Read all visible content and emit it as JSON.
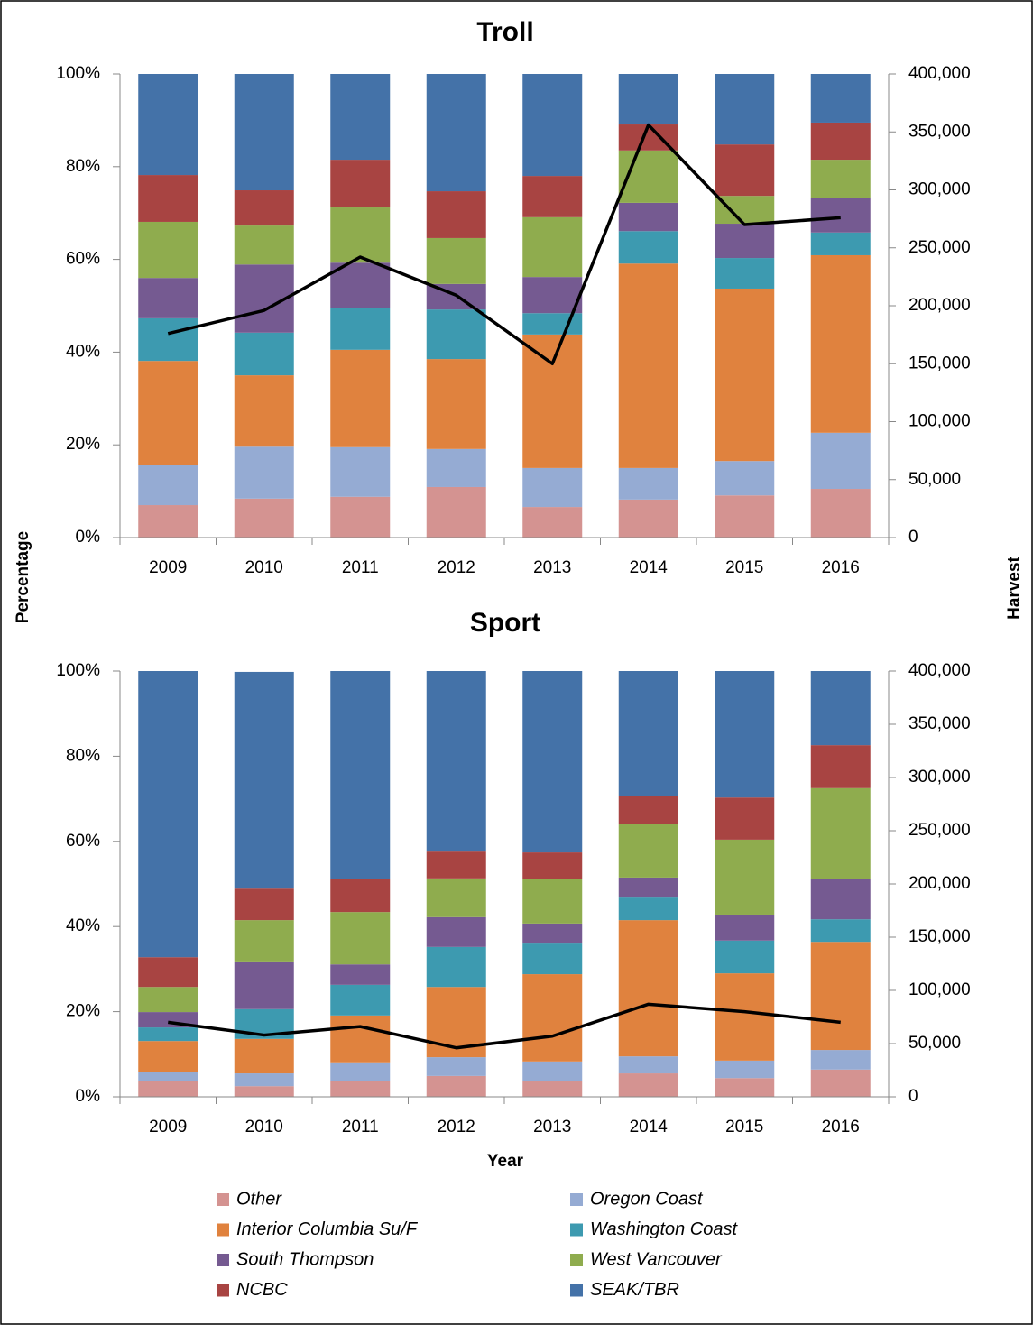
{
  "chart_data": [
    {
      "type": "bar",
      "stacked": true,
      "title": "Troll",
      "ylabel": "Percentage",
      "y2label": "Harvest",
      "categories": [
        "2009",
        "2010",
        "2011",
        "2012",
        "2013",
        "2014",
        "2015",
        "2016"
      ],
      "series": [
        {
          "name": "Other",
          "color": "#d49391",
          "values": [
            7.0,
            8.4,
            8.8,
            10.9,
            6.6,
            8.2,
            9.1,
            10.5
          ]
        },
        {
          "name": "Oregon Coast",
          "color": "#95abd3",
          "values": [
            8.6,
            11.2,
            10.7,
            8.2,
            8.4,
            6.8,
            7.4,
            12.1
          ]
        },
        {
          "name": "Interior Columbia Su/F",
          "color": "#e0823e",
          "values": [
            22.5,
            15.4,
            21.0,
            19.4,
            28.8,
            44.1,
            37.2,
            38.3
          ]
        },
        {
          "name": "Washington Coast",
          "color": "#3d9ab0",
          "values": [
            9.2,
            9.2,
            9.1,
            10.7,
            4.6,
            7.0,
            6.6,
            4.9
          ]
        },
        {
          "name": "South Thompson",
          "color": "#755a91",
          "values": [
            8.7,
            14.7,
            9.7,
            5.5,
            7.8,
            6.1,
            7.4,
            7.4
          ]
        },
        {
          "name": "West Vancouver",
          "color": "#8fac4e",
          "values": [
            12.1,
            8.4,
            11.9,
            9.9,
            12.9,
            11.3,
            6.0,
            8.3
          ]
        },
        {
          "name": "NCBC",
          "color": "#a84442",
          "values": [
            10.1,
            7.6,
            10.3,
            10.1,
            8.9,
            5.6,
            11.1,
            8.0
          ]
        },
        {
          "name": "SEAK/TBR",
          "color": "#4472a8",
          "values": [
            21.8,
            25.1,
            18.5,
            25.3,
            22.0,
            10.9,
            15.2,
            10.5
          ]
        },
        {
          "type": "line",
          "axis": "y2",
          "color": "#000000",
          "values": [
            176000,
            196000,
            242000,
            209000,
            150000,
            356000,
            270000,
            276000
          ]
        }
      ],
      "ylim": [
        0,
        100
      ],
      "yticks": [
        {
          "value": 0,
          "label": "0%"
        },
        {
          "value": 20,
          "label": "20%"
        },
        {
          "value": 40,
          "label": "40%"
        },
        {
          "value": 60,
          "label": "60%"
        },
        {
          "value": 80,
          "label": "80%"
        },
        {
          "value": 100,
          "label": "100%"
        }
      ],
      "y2lim": [
        0,
        400000
      ],
      "y2ticks": [
        0,
        {
          "value": 50000,
          "label": "50,000"
        },
        {
          "value": 100000,
          "label": "100,000"
        },
        {
          "value": 150000,
          "label": "150,000"
        },
        {
          "value": 200000,
          "label": "200,000"
        },
        {
          "value": 250000,
          "label": "250,000"
        },
        {
          "value": 300000,
          "label": "300,000"
        },
        {
          "value": 350000,
          "label": "350,000"
        },
        {
          "value": 400000,
          "label": "400,000"
        }
      ]
    },
    {
      "type": "bar",
      "stacked": true,
      "title": "Sport",
      "xlabel": "Year",
      "categories": [
        "2009",
        "2010",
        "2011",
        "2012",
        "2013",
        "2014",
        "2015",
        "2016"
      ],
      "series": [
        {
          "name": "Other",
          "color": "#d49391",
          "values": [
            3.8,
            2.5,
            3.8,
            4.9,
            3.6,
            5.5,
            4.4,
            6.4
          ]
        },
        {
          "name": "Oregon Coast",
          "color": "#95abd3",
          "values": [
            2.1,
            3.0,
            4.3,
            4.4,
            4.7,
            4.0,
            4.1,
            4.6
          ]
        },
        {
          "name": "Interior Columbia Su/F",
          "color": "#e0823e",
          "values": [
            7.2,
            8.1,
            11.0,
            16.5,
            20.5,
            32.0,
            20.5,
            25.4
          ]
        },
        {
          "name": "Washington Coast",
          "color": "#3d9ab0",
          "values": [
            3.2,
            7.0,
            7.2,
            9.4,
            7.2,
            5.3,
            7.7,
            5.3
          ]
        },
        {
          "name": "South Thompson",
          "color": "#755a91",
          "values": [
            3.6,
            11.2,
            4.8,
            7.0,
            4.7,
            4.7,
            6.1,
            9.4
          ]
        },
        {
          "name": "West Vancouver",
          "color": "#8fac4e",
          "values": [
            5.9,
            9.7,
            12.3,
            9.1,
            10.4,
            12.5,
            17.6,
            21.4
          ]
        },
        {
          "name": "NCBC",
          "color": "#a84442",
          "values": [
            7.0,
            7.4,
            7.7,
            6.3,
            6.3,
            6.6,
            9.9,
            10.1
          ]
        },
        {
          "name": "SEAK/TBR",
          "color": "#4472a8",
          "values": [
            67.2,
            50.9,
            48.9,
            42.4,
            42.6,
            29.4,
            29.7,
            17.4
          ]
        },
        {
          "type": "line",
          "axis": "y2",
          "color": "#000000",
          "values": [
            70000,
            58000,
            66000,
            46000,
            57000,
            87000,
            80000,
            70000
          ]
        }
      ],
      "ylim": [
        0,
        100
      ],
      "yticks": [
        {
          "value": 0,
          "label": "0%"
        },
        {
          "value": 20,
          "label": "20%"
        },
        {
          "value": 40,
          "label": "40%"
        },
        {
          "value": 60,
          "label": "60%"
        },
        {
          "value": 80,
          "label": "80%"
        },
        {
          "value": 100,
          "label": "100%"
        }
      ],
      "y2lim": [
        0,
        400000
      ],
      "y2ticks": [
        0,
        {
          "value": 50000,
          "label": "50,000"
        },
        {
          "value": 100000,
          "label": "100,000"
        },
        {
          "value": 150000,
          "label": "150,000"
        },
        {
          "value": 200000,
          "label": "200,000"
        },
        {
          "value": 250000,
          "label": "250,000"
        },
        {
          "value": 300000,
          "label": "300,000"
        },
        {
          "value": 350000,
          "label": "350,000"
        },
        {
          "value": 400000,
          "label": "400,000"
        }
      ]
    }
  ]
}
